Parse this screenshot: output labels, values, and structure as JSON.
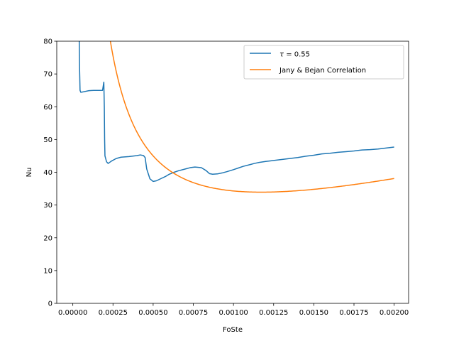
{
  "chart_data": {
    "type": "line",
    "xlabel": "FoSte",
    "ylabel": "Nu",
    "xlim": [
      -0.0001,
      0.00209
    ],
    "ylim": [
      0,
      80
    ],
    "xticks": [
      0.0,
      0.00025,
      0.0005,
      0.00075,
      0.001,
      0.00125,
      0.0015,
      0.00175,
      0.002
    ],
    "xtick_labels": [
      "0.00000",
      "0.00025",
      "0.00050",
      "0.00075",
      "0.00100",
      "0.00125",
      "0.00150",
      "0.00175",
      "0.00200"
    ],
    "yticks": [
      0,
      10,
      20,
      30,
      40,
      50,
      60,
      70,
      80
    ],
    "ytick_labels": [
      "0",
      "10",
      "20",
      "30",
      "40",
      "50",
      "60",
      "70",
      "80"
    ],
    "grid": false,
    "legend_position": "top-right",
    "series": [
      {
        "name": "τ = 0.55",
        "legend_base": "τ",
        "legend_rest": " = 0.55",
        "color": "#1f77b4",
        "x": [
          4e-05,
          4.2e-05,
          4.5e-05,
          5e-05,
          6e-05,
          8e-05,
          0.0001,
          0.00013,
          0.00016,
          0.000185,
          0.000193,
          0.000196,
          0.000198,
          0.0002,
          0.00021,
          0.00022,
          0.00024,
          0.00027,
          0.0003,
          0.00035,
          0.0004,
          0.00042,
          0.00044,
          0.00045,
          0.00046,
          0.00048,
          0.0005,
          0.00052,
          0.00055,
          0.00058,
          0.0006,
          0.00063,
          0.00066,
          0.0007,
          0.00073,
          0.00076,
          0.0008,
          0.00083,
          0.00085,
          0.00087,
          0.0009,
          0.00093,
          0.00096,
          0.001,
          0.00103,
          0.00106,
          0.0011,
          0.00113,
          0.00116,
          0.0012,
          0.00125,
          0.0013,
          0.00135,
          0.0014,
          0.00145,
          0.0015,
          0.00155,
          0.0016,
          0.00165,
          0.0017,
          0.00175,
          0.0018,
          0.00185,
          0.0019,
          0.00195,
          0.002
        ],
        "y": [
          80,
          72,
          65,
          64.4,
          64.5,
          64.7,
          64.9,
          65.0,
          65.0,
          65.0,
          67.5,
          60,
          50,
          45,
          43.2,
          42.7,
          43.4,
          44.2,
          44.6,
          44.8,
          45.1,
          45.3,
          45.1,
          44.5,
          41,
          38,
          37.2,
          37.4,
          38.1,
          38.8,
          39.4,
          40.0,
          40.5,
          41.0,
          41.4,
          41.6,
          41.4,
          40.5,
          39.6,
          39.4,
          39.5,
          39.8,
          40.2,
          40.8,
          41.3,
          41.8,
          42.3,
          42.7,
          43.0,
          43.3,
          43.6,
          43.9,
          44.2,
          44.5,
          44.9,
          45.2,
          45.6,
          45.8,
          46.1,
          46.3,
          46.5,
          46.8,
          46.9,
          47.1,
          47.4,
          47.7
        ]
      },
      {
        "name": "Jany & Bejan Correlation",
        "color": "#ff7f0e",
        "formula": "0.0168 / x + 12200 * x + 5.3",
        "x_range": [
          7e-05,
          0.002
        ]
      }
    ]
  }
}
